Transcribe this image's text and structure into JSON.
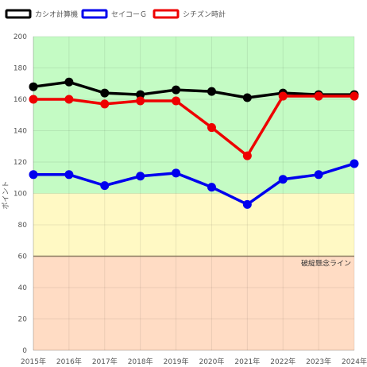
{
  "chart_data": {
    "type": "line",
    "x": [
      "2015年",
      "2016年",
      "2017年",
      "2018年",
      "2019年",
      "2020年",
      "2021年",
      "2022年",
      "2023年",
      "2024年"
    ],
    "series": [
      {
        "name": "カシオ計算機",
        "color": "#000000",
        "values": [
          168,
          171,
          164,
          163,
          166,
          165,
          161,
          164,
          163,
          163
        ]
      },
      {
        "name": "セイコーＧ",
        "color": "#0000ee",
        "values": [
          112,
          112,
          105,
          111,
          113,
          104,
          93,
          109,
          112,
          119
        ]
      },
      {
        "name": "シチズン時計",
        "color": "#ee0000",
        "values": [
          160,
          160,
          157,
          159,
          159,
          142,
          124,
          162,
          162,
          162
        ]
      }
    ],
    "ylabel": "ポイント",
    "ylim": [
      0,
      200
    ],
    "yticks": [
      0,
      20,
      40,
      60,
      80,
      100,
      120,
      140,
      160,
      180,
      200
    ],
    "grid": true,
    "legend": "top-left",
    "bands": [
      {
        "from": 100,
        "to": 200,
        "color": "#c4fbc4"
      },
      {
        "from": 60,
        "to": 100,
        "color": "#fff9c4"
      },
      {
        "from": 0,
        "to": 60,
        "color": "#ffdcc4"
      }
    ],
    "reference_line": {
      "value": 60,
      "label": "破綻懸念ライン",
      "color": "#8a7a60"
    }
  }
}
